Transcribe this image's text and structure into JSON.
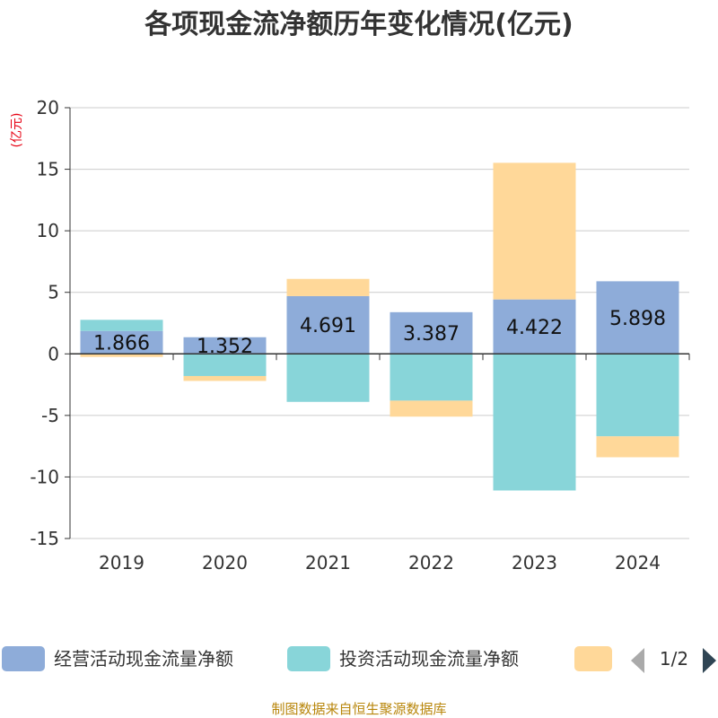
{
  "chart_data": {
    "type": "bar",
    "stacked": true,
    "title": "各项现金流净额历年变化情况(亿元)",
    "ylabel": "(亿元)",
    "xlabel": "",
    "categories": [
      "2019",
      "2020",
      "2021",
      "2022",
      "2023",
      "2024"
    ],
    "ylim": [
      -15,
      20
    ],
    "yticks": [
      20,
      15,
      10,
      5,
      0,
      -5,
      -10,
      -15
    ],
    "grid": true,
    "series": [
      {
        "name": "经营活动现金流量净额",
        "color": "#8eacd9",
        "values": [
          1.866,
          1.352,
          4.691,
          3.387,
          4.422,
          5.898
        ],
        "labels": [
          "1.866",
          "1.352",
          "4.691",
          "3.387",
          "4.422",
          "5.898"
        ]
      },
      {
        "name": "投资活动现金流量净额",
        "color": "#88d5d9",
        "values": [
          0.9,
          -1.8,
          -3.9,
          -3.8,
          -11.1,
          -6.7
        ]
      },
      {
        "name": "",
        "color": "#ffd899",
        "values": [
          -0.25,
          -0.4,
          1.4,
          -1.3,
          11.1,
          -1.7
        ]
      }
    ]
  },
  "legend": {
    "page": "1/2",
    "prev_color": "#aaaaaa",
    "next_color": "#2f4554"
  },
  "footer": "制图数据来自恒生聚源数据库"
}
